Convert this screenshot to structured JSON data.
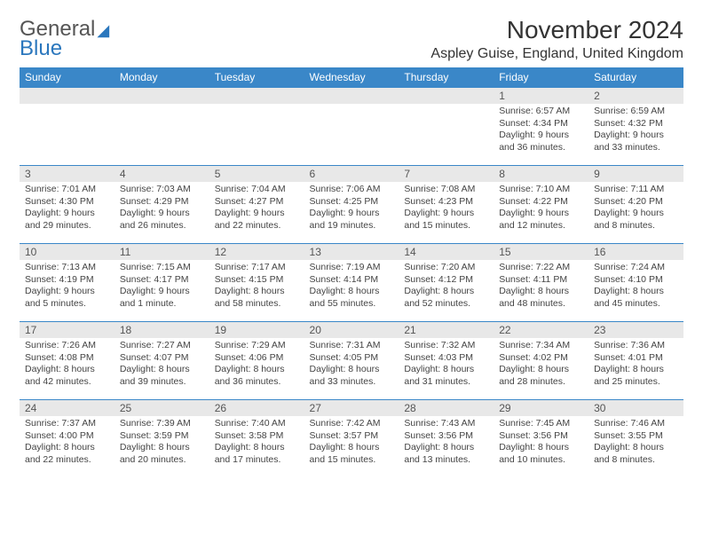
{
  "logo": {
    "line1": "General",
    "line2": "Blue"
  },
  "title": "November 2024",
  "location": "Aspley Guise, England, United Kingdom",
  "colors": {
    "header_bg": "#3a87c8",
    "header_fg": "#ffffff",
    "daynum_bg": "#e8e8e8",
    "border": "#3a87c8",
    "logo_blue": "#2b77bd",
    "text": "#333333"
  },
  "daysOfWeek": [
    "Sunday",
    "Monday",
    "Tuesday",
    "Wednesday",
    "Thursday",
    "Friday",
    "Saturday"
  ],
  "weeks": [
    [
      null,
      null,
      null,
      null,
      null,
      {
        "n": "1",
        "sr": "6:57 AM",
        "ss": "4:34 PM",
        "dl": "9 hours and 36 minutes."
      },
      {
        "n": "2",
        "sr": "6:59 AM",
        "ss": "4:32 PM",
        "dl": "9 hours and 33 minutes."
      }
    ],
    [
      {
        "n": "3",
        "sr": "7:01 AM",
        "ss": "4:30 PM",
        "dl": "9 hours and 29 minutes."
      },
      {
        "n": "4",
        "sr": "7:03 AM",
        "ss": "4:29 PM",
        "dl": "9 hours and 26 minutes."
      },
      {
        "n": "5",
        "sr": "7:04 AM",
        "ss": "4:27 PM",
        "dl": "9 hours and 22 minutes."
      },
      {
        "n": "6",
        "sr": "7:06 AM",
        "ss": "4:25 PM",
        "dl": "9 hours and 19 minutes."
      },
      {
        "n": "7",
        "sr": "7:08 AM",
        "ss": "4:23 PM",
        "dl": "9 hours and 15 minutes."
      },
      {
        "n": "8",
        "sr": "7:10 AM",
        "ss": "4:22 PM",
        "dl": "9 hours and 12 minutes."
      },
      {
        "n": "9",
        "sr": "7:11 AM",
        "ss": "4:20 PM",
        "dl": "9 hours and 8 minutes."
      }
    ],
    [
      {
        "n": "10",
        "sr": "7:13 AM",
        "ss": "4:19 PM",
        "dl": "9 hours and 5 minutes."
      },
      {
        "n": "11",
        "sr": "7:15 AM",
        "ss": "4:17 PM",
        "dl": "9 hours and 1 minute."
      },
      {
        "n": "12",
        "sr": "7:17 AM",
        "ss": "4:15 PM",
        "dl": "8 hours and 58 minutes."
      },
      {
        "n": "13",
        "sr": "7:19 AM",
        "ss": "4:14 PM",
        "dl": "8 hours and 55 minutes."
      },
      {
        "n": "14",
        "sr": "7:20 AM",
        "ss": "4:12 PM",
        "dl": "8 hours and 52 minutes."
      },
      {
        "n": "15",
        "sr": "7:22 AM",
        "ss": "4:11 PM",
        "dl": "8 hours and 48 minutes."
      },
      {
        "n": "16",
        "sr": "7:24 AM",
        "ss": "4:10 PM",
        "dl": "8 hours and 45 minutes."
      }
    ],
    [
      {
        "n": "17",
        "sr": "7:26 AM",
        "ss": "4:08 PM",
        "dl": "8 hours and 42 minutes."
      },
      {
        "n": "18",
        "sr": "7:27 AM",
        "ss": "4:07 PM",
        "dl": "8 hours and 39 minutes."
      },
      {
        "n": "19",
        "sr": "7:29 AM",
        "ss": "4:06 PM",
        "dl": "8 hours and 36 minutes."
      },
      {
        "n": "20",
        "sr": "7:31 AM",
        "ss": "4:05 PM",
        "dl": "8 hours and 33 minutes."
      },
      {
        "n": "21",
        "sr": "7:32 AM",
        "ss": "4:03 PM",
        "dl": "8 hours and 31 minutes."
      },
      {
        "n": "22",
        "sr": "7:34 AM",
        "ss": "4:02 PM",
        "dl": "8 hours and 28 minutes."
      },
      {
        "n": "23",
        "sr": "7:36 AM",
        "ss": "4:01 PM",
        "dl": "8 hours and 25 minutes."
      }
    ],
    [
      {
        "n": "24",
        "sr": "7:37 AM",
        "ss": "4:00 PM",
        "dl": "8 hours and 22 minutes."
      },
      {
        "n": "25",
        "sr": "7:39 AM",
        "ss": "3:59 PM",
        "dl": "8 hours and 20 minutes."
      },
      {
        "n": "26",
        "sr": "7:40 AM",
        "ss": "3:58 PM",
        "dl": "8 hours and 17 minutes."
      },
      {
        "n": "27",
        "sr": "7:42 AM",
        "ss": "3:57 PM",
        "dl": "8 hours and 15 minutes."
      },
      {
        "n": "28",
        "sr": "7:43 AM",
        "ss": "3:56 PM",
        "dl": "8 hours and 13 minutes."
      },
      {
        "n": "29",
        "sr": "7:45 AM",
        "ss": "3:56 PM",
        "dl": "8 hours and 10 minutes."
      },
      {
        "n": "30",
        "sr": "7:46 AM",
        "ss": "3:55 PM",
        "dl": "8 hours and 8 minutes."
      }
    ]
  ],
  "labels": {
    "sunrise": "Sunrise: ",
    "sunset": "Sunset: ",
    "daylight": "Daylight: "
  }
}
